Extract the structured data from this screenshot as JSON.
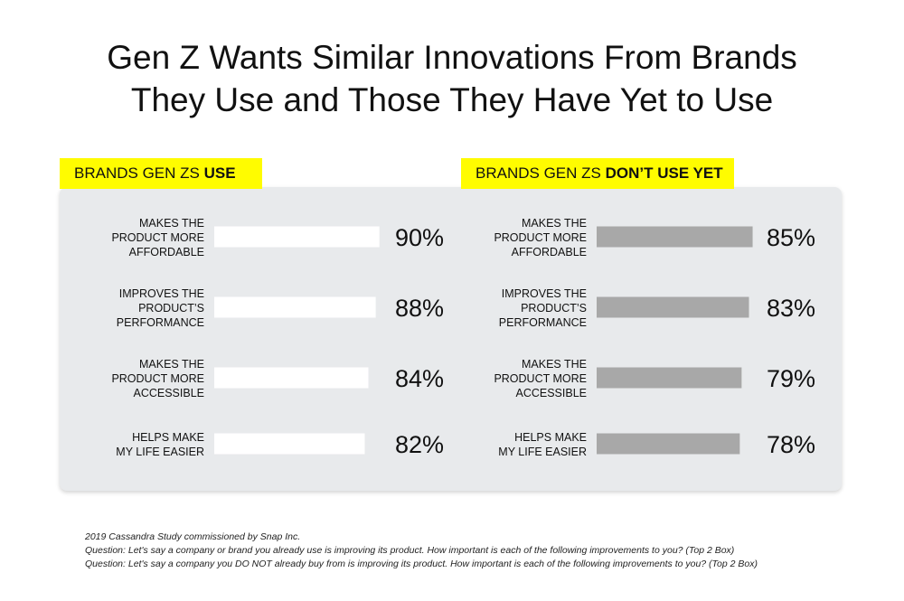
{
  "title": {
    "line1": "Gen Z Wants Similar Innovations From Brands",
    "line2": "They Use and Those They Have Yet to Use"
  },
  "colors": {
    "highlight": "#fffc00",
    "panel": "#e8eaec",
    "bar_use": "#ffffff",
    "bar_dont_use": "#a8a8a8"
  },
  "chart_data": [
    {
      "type": "bar",
      "orientation": "horizontal",
      "title_prefix": "BRANDS GEN ZS ",
      "title_emphasis": "USE",
      "categories": [
        [
          "MAKES THE",
          "PRODUCT MORE",
          "AFFORDABLE"
        ],
        [
          "IMPROVES THE",
          "PRODUCT’S",
          "PERFORMANCE"
        ],
        [
          "MAKES THE",
          "PRODUCT MORE",
          "ACCESSIBLE"
        ],
        [
          "HELPS MAKE",
          "MY LIFE EASIER"
        ]
      ],
      "values": [
        90,
        88,
        84,
        82
      ],
      "value_labels": [
        "90%",
        "88%",
        "84%",
        "82%"
      ],
      "xlim": [
        0,
        100
      ],
      "bar_color": "#ffffff"
    },
    {
      "type": "bar",
      "orientation": "horizontal",
      "title_prefix": "BRANDS GEN ZS ",
      "title_emphasis": "DON’T USE YET",
      "categories": [
        [
          "MAKES THE",
          "PRODUCT MORE",
          "AFFORDABLE"
        ],
        [
          "IMPROVES THE",
          "PRODUCT’S",
          "PERFORMANCE"
        ],
        [
          "MAKES THE",
          "PRODUCT MORE",
          "ACCESSIBLE"
        ],
        [
          "HELPS MAKE",
          "MY LIFE EASIER"
        ]
      ],
      "values": [
        85,
        83,
        79,
        78
      ],
      "value_labels": [
        "85%",
        "83%",
        "79%",
        "78%"
      ],
      "xlim": [
        0,
        100
      ],
      "bar_color": "#a8a8a8"
    }
  ],
  "footnotes": [
    "2019 Cassandra Study commissioned by Snap Inc.",
    "Question: Let's say a company or brand you already use is improving its product. How important is each of the following improvements to you? (Top 2 Box)",
    "Question: Let's say a company you DO NOT already buy from is improving its product. How important is each of the following improvements to you? (Top 2 Box)"
  ]
}
